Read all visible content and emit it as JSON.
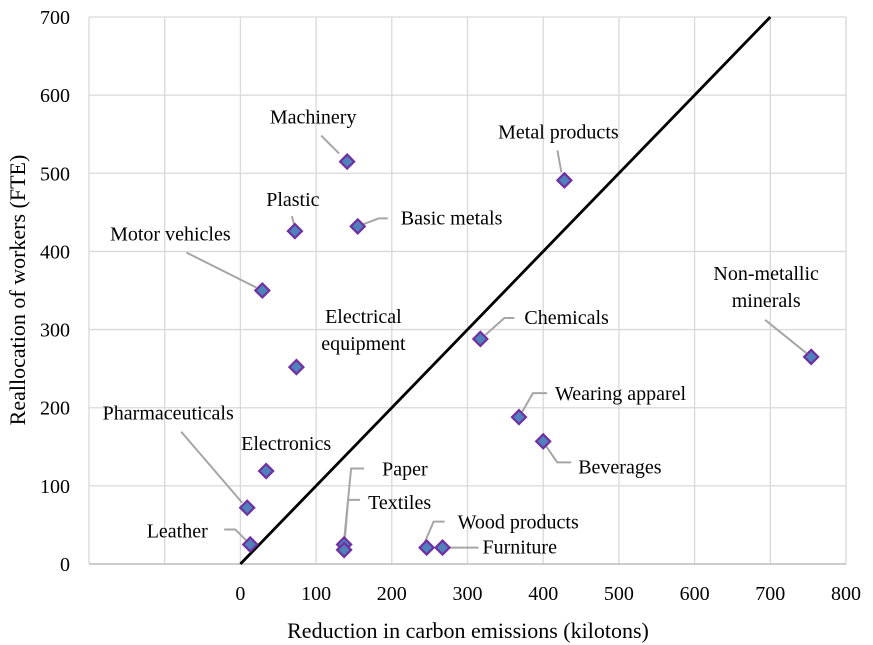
{
  "chart_data": {
    "type": "scatter",
    "title": "",
    "xlabel": "Reduction in carbon emissions (kilotons)",
    "ylabel": "Reallocation of workers (FTE)",
    "xlim": [
      -200,
      800
    ],
    "ylim": [
      0,
      700
    ],
    "x_ticks": [
      "0",
      "100",
      "200",
      "300",
      "400",
      "500",
      "600",
      "700",
      "800"
    ],
    "x_tick_values": [
      0,
      100,
      200,
      300,
      400,
      500,
      600,
      700,
      800
    ],
    "y_ticks": [
      "0",
      "100",
      "200",
      "300",
      "400",
      "500",
      "600",
      "700"
    ],
    "y_tick_values": [
      0,
      100,
      200,
      300,
      400,
      500,
      600,
      700
    ],
    "grid": true,
    "reference_line": {
      "x": [
        0,
        700
      ],
      "y": [
        0,
        700
      ],
      "color": "#000000"
    },
    "marker_fill": "#4f81bd",
    "marker_stroke": "#7030a0",
    "leader_color": "#a6a6a6",
    "points": [
      {
        "label": [
          "Machinery"
        ],
        "x": 141,
        "y": 515
      },
      {
        "label": [
          "Metal products"
        ],
        "x": 428,
        "y": 491
      },
      {
        "label": [
          "Plastic"
        ],
        "x": 72,
        "y": 426
      },
      {
        "label": [
          "Basic metals"
        ],
        "x": 155,
        "y": 432
      },
      {
        "label": [
          "Motor vehicles"
        ],
        "x": 29,
        "y": 350
      },
      {
        "label": [
          "Electrical",
          "equipment"
        ],
        "x": 74,
        "y": 252
      },
      {
        "label": [
          "Chemicals"
        ],
        "x": 317,
        "y": 288
      },
      {
        "label": [
          "Non-metallic",
          "minerals"
        ],
        "x": 754,
        "y": 265
      },
      {
        "label": [
          "Wearing apparel"
        ],
        "x": 368,
        "y": 188
      },
      {
        "label": [
          "Beverages"
        ],
        "x": 400,
        "y": 157
      },
      {
        "label": [
          "Pharmaceuticals"
        ],
        "x": 9,
        "y": 72
      },
      {
        "label": [
          "Electronics"
        ],
        "x": 34,
        "y": 119
      },
      {
        "label": [
          "Leather"
        ],
        "x": 13,
        "y": 25
      },
      {
        "label": [
          "Paper"
        ],
        "x": 137,
        "y": 25
      },
      {
        "label": [
          "Textiles"
        ],
        "x": 137,
        "y": 18
      },
      {
        "label": [
          "Wood products"
        ],
        "x": 246,
        "y": 21
      },
      {
        "label": [
          "Furniture"
        ],
        "x": 267,
        "y": 21
      }
    ]
  }
}
